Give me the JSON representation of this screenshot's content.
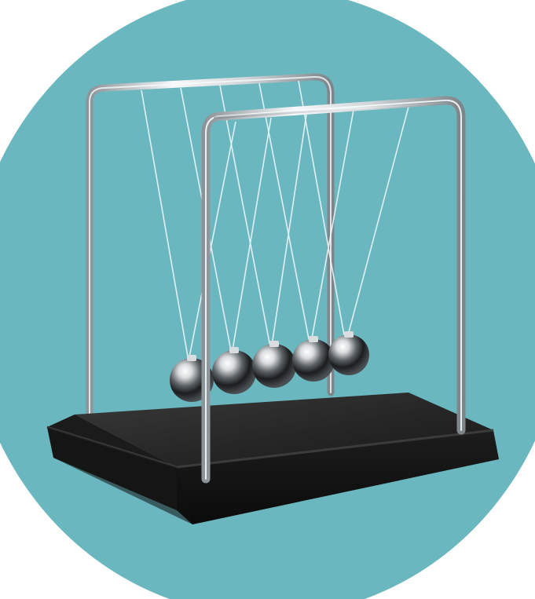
{
  "image": {
    "subject": "newtons-cradle",
    "colors": {
      "page_background": "#ffffff",
      "circle_background": "#6bb7bf",
      "circle_shadow": "#5aa8b1",
      "base_top": "#2a2a2a",
      "base_edge": "#121212",
      "frame_metal": "#d9dde0",
      "frame_highlight": "#f7f9fa",
      "frame_shadow": "#8b9499",
      "string": "#eef6f8",
      "ball_light": "#ffffff",
      "ball_dark": "#111111"
    },
    "ball_count": 5
  }
}
